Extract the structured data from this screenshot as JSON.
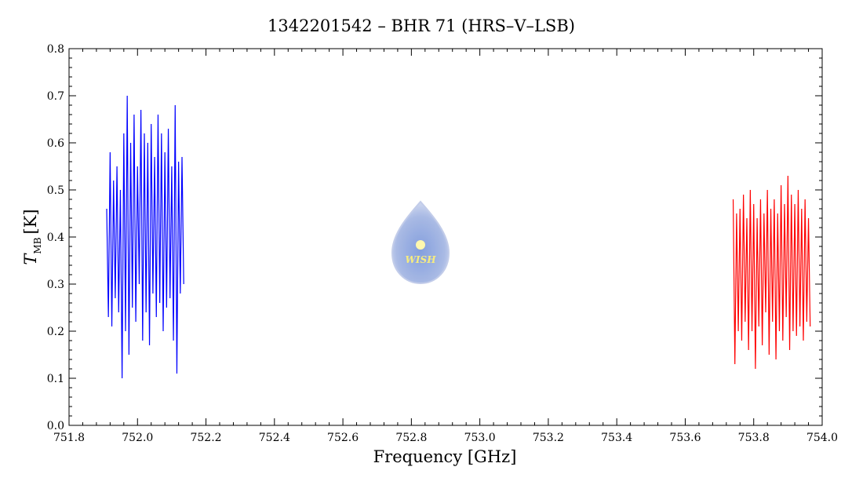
{
  "chart_data": {
    "type": "line",
    "title": "1342201542 – BHR 71 (HRS–V–LSB)",
    "x_label": "Frequency [GHz]",
    "y_label_main": "T",
    "y_label_sub": "MB",
    "y_label_unit": "[K]",
    "watermark": "WISH",
    "xlim": [
      751.8,
      754.0
    ],
    "ylim": [
      0,
      0.8
    ],
    "xticks": [
      751.8,
      {
        "value": 752,
        "label": "752.0"
      },
      752.2,
      752.4,
      752.6,
      752.8,
      {
        "value": 753,
        "label": "753.0"
      },
      753.2,
      753.4,
      753.6,
      753.8,
      {
        "value": 754,
        "label": "754.0"
      }
    ],
    "yticks": [
      {
        "value": 0,
        "label": "0.0"
      },
      0.1,
      0.2,
      0.3,
      0.4,
      0.5,
      0.6,
      0.7,
      0.8
    ],
    "series": [
      {
        "color": "#0000ff",
        "x": [
          751.91,
          751.915,
          751.92,
          751.925,
          751.93,
          751.935,
          751.94,
          751.945,
          751.95,
          751.955,
          751.96,
          751.965,
          751.97,
          751.975,
          751.98,
          751.985,
          751.99,
          751.995,
          752,
          752.005,
          752.01,
          752.015,
          752.02,
          752.025,
          752.03,
          752.035,
          752.04,
          752.045,
          752.05,
          752.055,
          752.06,
          752.065,
          752.07,
          752.075,
          752.08,
          752.085,
          752.09,
          752.095,
          752.1,
          752.105,
          752.11,
          752.115,
          752.12,
          752.125,
          752.13,
          752.135
        ],
        "values": [
          0.46,
          0.23,
          0.58,
          0.21,
          0.52,
          0.27,
          0.55,
          0.24,
          0.5,
          0.1,
          0.62,
          0.2,
          0.7,
          0.15,
          0.6,
          0.25,
          0.66,
          0.22,
          0.55,
          0.3,
          0.67,
          0.18,
          0.62,
          0.24,
          0.6,
          0.17,
          0.64,
          0.28,
          0.57,
          0.23,
          0.66,
          0.26,
          0.62,
          0.2,
          0.58,
          0.25,
          0.63,
          0.27,
          0.55,
          0.18,
          0.68,
          0.11,
          0.56,
          0.28,
          0.57,
          0.3
        ]
      },
      {
        "color": "#ff0000",
        "x": [
          753.74,
          753.745,
          753.75,
          753.755,
          753.76,
          753.765,
          753.77,
          753.775,
          753.78,
          753.785,
          753.79,
          753.795,
          753.8,
          753.805,
          753.81,
          753.815,
          753.82,
          753.825,
          753.83,
          753.835,
          753.84,
          753.845,
          753.85,
          753.855,
          753.86,
          753.865,
          753.87,
          753.875,
          753.88,
          753.885,
          753.89,
          753.895,
          753.9,
          753.905,
          753.91,
          753.915,
          753.92,
          753.925,
          753.93,
          753.935,
          753.94,
          753.945,
          753.95,
          753.955,
          753.96,
          753.965
        ],
        "values": [
          0.48,
          0.13,
          0.45,
          0.2,
          0.46,
          0.18,
          0.49,
          0.22,
          0.44,
          0.16,
          0.5,
          0.2,
          0.47,
          0.12,
          0.44,
          0.21,
          0.48,
          0.17,
          0.45,
          0.24,
          0.5,
          0.15,
          0.46,
          0.22,
          0.48,
          0.14,
          0.45,
          0.2,
          0.51,
          0.18,
          0.47,
          0.23,
          0.53,
          0.16,
          0.49,
          0.2,
          0.47,
          0.19,
          0.5,
          0.21,
          0.46,
          0.18,
          0.48,
          0.22,
          0.44,
          0.21
        ]
      }
    ]
  }
}
